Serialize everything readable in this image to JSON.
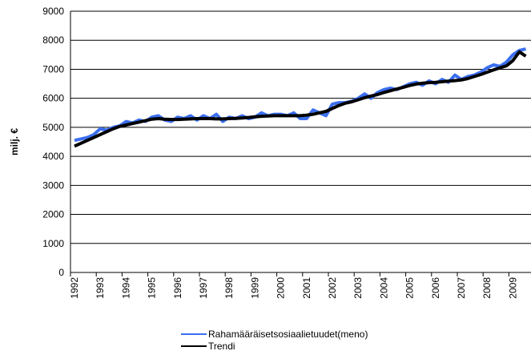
{
  "chart_data": {
    "type": "line",
    "y_label": "milj. €",
    "categories": [
      "1992",
      null,
      null,
      null,
      "1993",
      null,
      null,
      null,
      "1994",
      null,
      null,
      null,
      "1995",
      null,
      null,
      null,
      "1996",
      null,
      null,
      null,
      "1997",
      null,
      null,
      null,
      "1998",
      null,
      null,
      null,
      "1999",
      null,
      null,
      null,
      "2000",
      null,
      null,
      null,
      "2001",
      null,
      null,
      null,
      "2002",
      null,
      null,
      null,
      "2003",
      null,
      null,
      null,
      "2004",
      null,
      null,
      null,
      "2005",
      null,
      null,
      null,
      "2006",
      null,
      null,
      null,
      "2007",
      null,
      null,
      null,
      "2008",
      null,
      null,
      null,
      "2009",
      null,
      null
    ],
    "series": [
      {
        "name": "Rahamääräisetsosiaalietuudet(meno)",
        "color": "#3b6ff0",
        "width": 4,
        "values": [
          4550,
          4600,
          4650,
          4750,
          4950,
          4900,
          5000,
          5050,
          5200,
          5150,
          5250,
          5200,
          5350,
          5400,
          5250,
          5200,
          5350,
          5300,
          5400,
          5250,
          5400,
          5300,
          5450,
          5200,
          5350,
          5300,
          5400,
          5300,
          5350,
          5500,
          5400,
          5450,
          5450,
          5400,
          5500,
          5300,
          5300,
          5600,
          5500,
          5400,
          5800,
          5850,
          5850,
          5900,
          6000,
          6150,
          6000,
          6200,
          6300,
          6350,
          6300,
          6400,
          6500,
          6550,
          6450,
          6600,
          6500,
          6650,
          6550,
          6800,
          6650,
          6750,
          6800,
          6900,
          7050,
          7150,
          7100,
          7250,
          7500,
          7650,
          7700
        ]
      },
      {
        "name": "Trendi",
        "color": "#000000",
        "width": 4,
        "values": [
          4350,
          4450,
          4550,
          4650,
          4750,
          4850,
          4950,
          5030,
          5080,
          5130,
          5180,
          5230,
          5280,
          5300,
          5280,
          5270,
          5270,
          5280,
          5290,
          5300,
          5300,
          5300,
          5290,
          5290,
          5300,
          5310,
          5320,
          5340,
          5360,
          5380,
          5390,
          5400,
          5400,
          5400,
          5400,
          5400,
          5420,
          5450,
          5500,
          5550,
          5650,
          5750,
          5830,
          5880,
          5950,
          6020,
          6080,
          6130,
          6200,
          6260,
          6320,
          6380,
          6440,
          6490,
          6520,
          6540,
          6550,
          6570,
          6590,
          6610,
          6630,
          6680,
          6750,
          6820,
          6900,
          6980,
          7050,
          7120,
          7300,
          7600,
          7450
        ]
      }
    ],
    "ylim": [
      0,
      9000
    ],
    "yticks": [
      0,
      1000,
      2000,
      3000,
      4000,
      5000,
      6000,
      7000,
      8000,
      9000
    ],
    "grid": true,
    "legend": "bottom"
  }
}
